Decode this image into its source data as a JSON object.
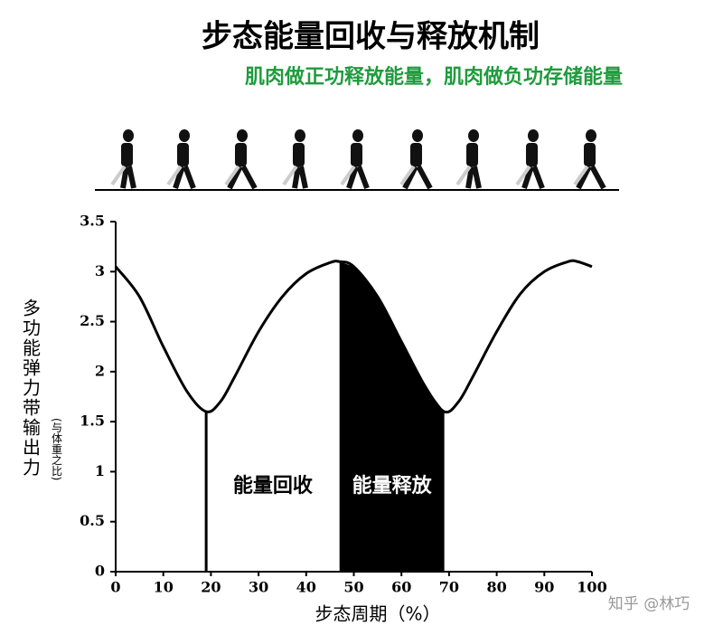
{
  "chart_data": {
    "type": "line",
    "title": "步态能量回收与释放机制",
    "subtitle": "肌肉做正功释放能量，肌肉做负功存储能量",
    "y_label": "多功能弹力带输出力",
    "y_label_note": "(与体重之比)",
    "x_label": "步态周期（%）",
    "watermark": "知乎 @林巧",
    "x": [
      0,
      5,
      10,
      15,
      19,
      22,
      25,
      30,
      35,
      40,
      45,
      47,
      50,
      55,
      60,
      65,
      69,
      72,
      75,
      80,
      85,
      90,
      95,
      97,
      100
    ],
    "series": [
      {
        "color": "#000000",
        "values": [
          3.05,
          2.75,
          2.25,
          1.8,
          1.6,
          1.7,
          1.95,
          2.4,
          2.75,
          2.98,
          3.09,
          3.1,
          3.05,
          2.75,
          2.3,
          1.85,
          1.6,
          1.7,
          1.95,
          2.4,
          2.78,
          3.0,
          3.1,
          3.1,
          3.05
        ]
      }
    ],
    "annotations": [
      {
        "text": "能量回收",
        "x_start": 19,
        "x_end": 47,
        "fill": "#ffffff",
        "text_color": "#000000"
      },
      {
        "text": "能量释放",
        "x_start": 47,
        "x_end": 69,
        "fill": "#000000",
        "text_color": "#ffffff"
      }
    ],
    "xlim": [
      0,
      100
    ],
    "xticks": [
      0,
      10,
      20,
      30,
      40,
      50,
      60,
      70,
      80,
      90,
      100
    ],
    "ylim": [
      0,
      3.5
    ],
    "yticks": [
      0,
      0.5,
      1,
      1.5,
      2,
      2.5,
      3,
      3.5
    ],
    "grid": false
  }
}
